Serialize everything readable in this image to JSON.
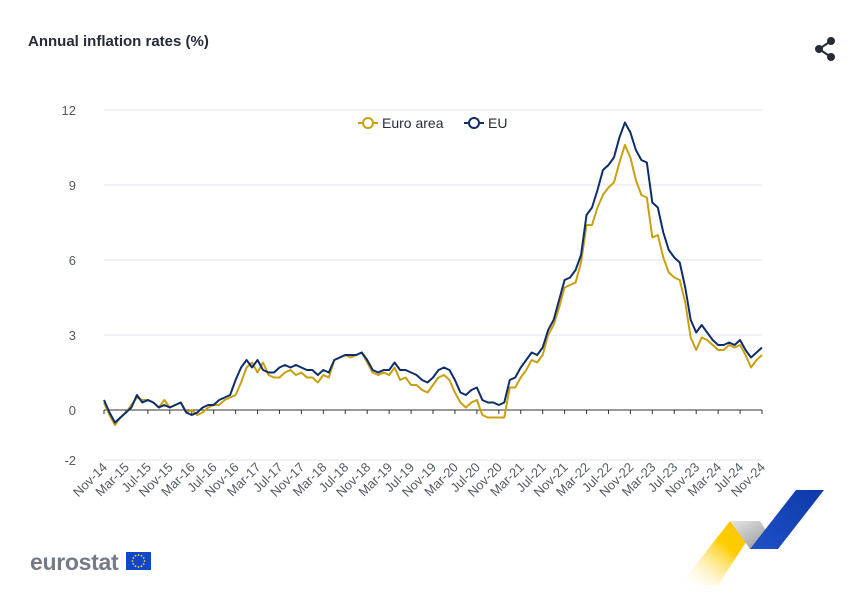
{
  "header": {
    "title": "Annual inflation rates (%)"
  },
  "icons": {
    "share": "share-icon",
    "flag": "eu-flag-icon"
  },
  "branding": {
    "logo_text": "eurostat"
  },
  "chart_data": {
    "type": "line",
    "title": "Annual inflation rates (%)",
    "ylim": [
      -2,
      12
    ],
    "yticks": [
      -2,
      0,
      3,
      6,
      9,
      12
    ],
    "xtick_labels": [
      "Nov-14",
      "Mar-15",
      "Jul-15",
      "Nov-15",
      "Mar-16",
      "Jul-16",
      "Nov-16",
      "Mar-17",
      "Jul-17",
      "Nov-17",
      "Mar-18",
      "Jul-18",
      "Nov-18",
      "Mar-19",
      "Jul-19",
      "Nov-19",
      "Mar-20",
      "Jul-20",
      "Nov-20",
      "Mar-21",
      "Jul-21",
      "Nov-21",
      "Mar-22",
      "Jul-22",
      "Nov-22",
      "Mar-23",
      "Jul-23",
      "Nov-23",
      "Mar-24",
      "Jul-24",
      "Nov-24"
    ],
    "start_month": "Nov-14",
    "grid": true,
    "legend": "top-center",
    "series": [
      {
        "name": "Euro area",
        "color": "#c9a010",
        "values": [
          0.3,
          -0.2,
          -0.6,
          -0.3,
          -0.1,
          0.2,
          0.5,
          0.4,
          0.4,
          0.3,
          0.1,
          0.4,
          0.1,
          0.2,
          0.3,
          -0.1,
          0.0,
          -0.2,
          -0.1,
          0.1,
          0.2,
          0.2,
          0.4,
          0.5,
          0.6,
          1.1,
          1.7,
          1.9,
          1.5,
          1.9,
          1.4,
          1.3,
          1.3,
          1.5,
          1.6,
          1.4,
          1.5,
          1.3,
          1.3,
          1.1,
          1.4,
          1.3,
          2.0,
          2.1,
          2.2,
          2.1,
          2.2,
          2.3,
          1.9,
          1.5,
          1.4,
          1.5,
          1.4,
          1.7,
          1.2,
          1.3,
          1.0,
          1.0,
          0.8,
          0.7,
          1.0,
          1.3,
          1.4,
          1.2,
          0.7,
          0.3,
          0.1,
          0.3,
          0.4,
          -0.2,
          -0.3,
          -0.3,
          -0.3,
          -0.3,
          0.9,
          0.9,
          1.3,
          1.6,
          2.0,
          1.9,
          2.2,
          3.0,
          3.4,
          4.1,
          4.9,
          5.0,
          5.1,
          5.9,
          7.4,
          7.4,
          8.1,
          8.6,
          8.9,
          9.1,
          9.9,
          10.6,
          10.1,
          9.2,
          8.6,
          8.5,
          6.9,
          7.0,
          6.1,
          5.5,
          5.3,
          5.2,
          4.3,
          2.9,
          2.4,
          2.9,
          2.8,
          2.6,
          2.4,
          2.4,
          2.6,
          2.5,
          2.6,
          2.2,
          1.7,
          2.0,
          2.2
        ]
      },
      {
        "name": "EU",
        "color": "#0e2d6b",
        "values": [
          0.4,
          -0.1,
          -0.5,
          -0.3,
          -0.1,
          0.1,
          0.6,
          0.3,
          0.4,
          0.3,
          0.1,
          0.2,
          0.1,
          0.2,
          0.3,
          -0.1,
          -0.2,
          -0.1,
          0.1,
          0.2,
          0.2,
          0.4,
          0.5,
          0.6,
          1.2,
          1.7,
          2.0,
          1.7,
          2.0,
          1.6,
          1.5,
          1.5,
          1.7,
          1.8,
          1.7,
          1.8,
          1.7,
          1.6,
          1.6,
          1.4,
          1.6,
          1.5,
          2.0,
          2.1,
          2.2,
          2.2,
          2.2,
          2.3,
          2.0,
          1.6,
          1.5,
          1.6,
          1.6,
          1.9,
          1.6,
          1.6,
          1.5,
          1.4,
          1.2,
          1.1,
          1.3,
          1.6,
          1.7,
          1.6,
          1.2,
          0.7,
          0.6,
          0.8,
          0.9,
          0.4,
          0.3,
          0.3,
          0.2,
          0.3,
          1.2,
          1.3,
          1.7,
          2.0,
          2.3,
          2.2,
          2.5,
          3.2,
          3.6,
          4.4,
          5.2,
          5.3,
          5.6,
          6.2,
          7.8,
          8.1,
          8.8,
          9.6,
          9.8,
          10.1,
          10.9,
          11.5,
          11.1,
          10.4,
          10.0,
          9.9,
          8.3,
          8.1,
          7.1,
          6.4,
          6.1,
          5.9,
          4.9,
          3.6,
          3.1,
          3.4,
          3.1,
          2.8,
          2.6,
          2.6,
          2.7,
          2.6,
          2.8,
          2.4,
          2.1,
          2.3,
          2.5
        ]
      }
    ]
  }
}
